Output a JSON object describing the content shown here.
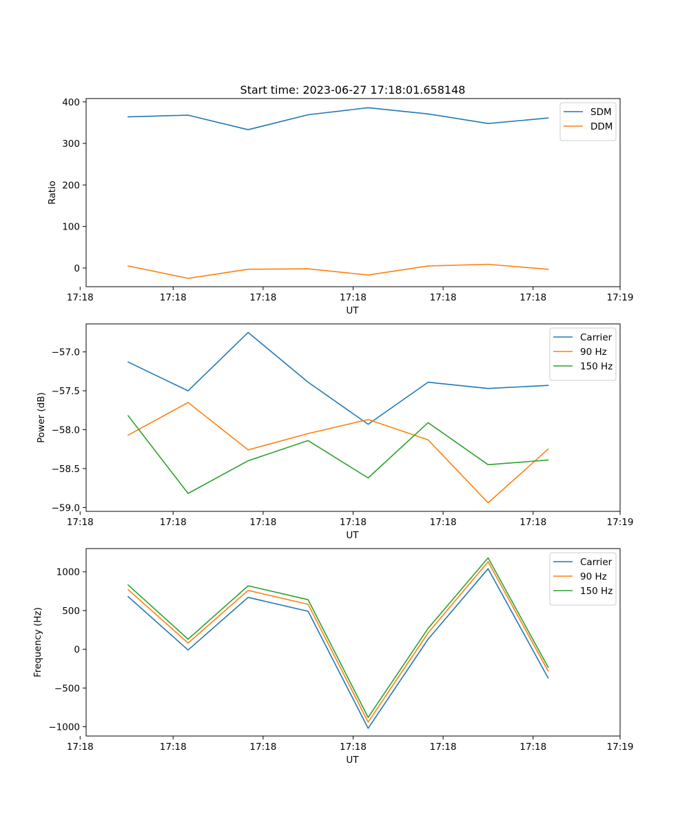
{
  "figure": {
    "title": "Start time: 2023-06-27 17:18:01.658148"
  },
  "chart_data": [
    {
      "type": "line",
      "title": "Start time: 2023-06-27 17:18:01.658148",
      "xlabel": "UT",
      "ylabel": "Ratio",
      "x": [
        1,
        2,
        3,
        4,
        5,
        6,
        7,
        8
      ],
      "xlim": [
        0.3,
        9.2
      ],
      "xticks": [
        0.2,
        1.75,
        3.25,
        4.75,
        6.25,
        7.75,
        9.2
      ],
      "xtick_labels": [
        "17:18",
        "17:18",
        "17:18",
        "17:18",
        "17:18",
        "17:18",
        "17:19"
      ],
      "ylim": [
        -45,
        408
      ],
      "yticks": [
        0,
        100,
        200,
        300,
        400
      ],
      "ytick_labels": [
        "0",
        "100",
        "200",
        "300",
        "400"
      ],
      "legend": "top-right",
      "grid": false,
      "series": [
        {
          "name": "SDM",
          "color": "#1f77b4",
          "values": [
            364,
            368,
            333,
            369,
            386,
            371,
            348,
            361
          ]
        },
        {
          "name": "DDM",
          "color": "#ff7f0e",
          "values": [
            5,
            -25,
            -3,
            -2,
            -17,
            5,
            9,
            -3
          ]
        }
      ]
    },
    {
      "type": "line",
      "xlabel": "UT",
      "ylabel": "Power (dB)",
      "x": [
        1,
        2,
        3,
        4,
        5,
        6,
        7,
        8
      ],
      "xlim": [
        0.3,
        9.2
      ],
      "xticks": [
        0.2,
        1.75,
        3.25,
        4.75,
        6.25,
        7.75,
        9.2
      ],
      "xtick_labels": [
        "17:18",
        "17:18",
        "17:18",
        "17:18",
        "17:18",
        "17:18",
        "17:19"
      ],
      "ylim": [
        -59.05,
        -56.64
      ],
      "yticks": [
        -59.0,
        -58.5,
        -58.0,
        -57.5,
        -57.0
      ],
      "ytick_labels": [
        "−59.0",
        "−58.5",
        "−58.0",
        "−57.5",
        "−57.0"
      ],
      "legend": "top-right",
      "grid": false,
      "series": [
        {
          "name": "Carrier",
          "color": "#1f77b4",
          "values": [
            -57.13,
            -57.5,
            -56.75,
            -57.39,
            -57.93,
            -57.39,
            -57.47,
            -57.43
          ]
        },
        {
          "name": "90 Hz",
          "color": "#ff7f0e",
          "values": [
            -58.07,
            -57.65,
            -58.26,
            -58.05,
            -57.87,
            -58.13,
            -58.94,
            -58.25
          ]
        },
        {
          "name": "150 Hz",
          "color": "#2ca02c",
          "values": [
            -57.82,
            -58.82,
            -58.4,
            -58.14,
            -58.62,
            -57.91,
            -58.45,
            -58.39
          ]
        }
      ]
    },
    {
      "type": "line",
      "xlabel": "UT",
      "ylabel": "Frequency (Hz)",
      "x": [
        1,
        2,
        3,
        4,
        5,
        6,
        7,
        8
      ],
      "xlim": [
        0.3,
        9.2
      ],
      "xticks": [
        0.2,
        1.75,
        3.25,
        4.75,
        6.25,
        7.75,
        9.2
      ],
      "xtick_labels": [
        "17:18",
        "17:18",
        "17:18",
        "17:18",
        "17:18",
        "17:18",
        "17:19"
      ],
      "ylim": [
        -1120,
        1300
      ],
      "yticks": [
        -1000,
        -500,
        0,
        500,
        1000
      ],
      "ytick_labels": [
        "−1000",
        "−500",
        "0",
        "500",
        "1000"
      ],
      "legend": "top-right",
      "grid": false,
      "series": [
        {
          "name": "Carrier",
          "color": "#1f77b4",
          "values": [
            680,
            -10,
            670,
            490,
            -1020,
            130,
            1040,
            -370
          ]
        },
        {
          "name": "90 Hz",
          "color": "#ff7f0e",
          "values": [
            770,
            80,
            760,
            580,
            -940,
            210,
            1130,
            -280
          ]
        },
        {
          "name": "150 Hz",
          "color": "#2ca02c",
          "values": [
            830,
            130,
            820,
            640,
            -880,
            270,
            1180,
            -230
          ]
        }
      ]
    }
  ]
}
